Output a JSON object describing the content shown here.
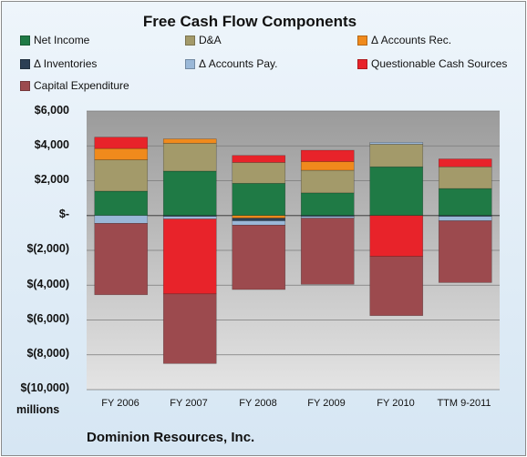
{
  "chart_data": {
    "type": "bar",
    "stacked": true,
    "title": "Free Cash Flow Components",
    "units_label": "millions",
    "company": "Dominion Resources, Inc.",
    "categories": [
      "FY 2006",
      "FY 2007",
      "FY 2008",
      "FY 2009",
      "FY 2010",
      "TTM 9-2011"
    ],
    "ylim": [
      -10000,
      6000
    ],
    "yticks": [
      6000,
      4000,
      2000,
      0,
      -2000,
      -4000,
      -6000,
      -8000,
      -10000
    ],
    "ytick_labels": [
      "$6,000",
      "$4,000",
      "$2,000",
      "$-",
      "$(2,000)",
      "$(4,000)",
      "$(6,000)",
      "$(8,000)",
      "$(10,000)"
    ],
    "grid": true,
    "legend_position": "top",
    "series": [
      {
        "name": "Net Income",
        "color": "#1f7a45",
        "values": [
          1400,
          2550,
          1850,
          1300,
          2800,
          1550
        ]
      },
      {
        "name": "D&A",
        "color": "#a39a6a",
        "values": [
          1800,
          1600,
          1200,
          1300,
          1300,
          1250
        ]
      },
      {
        "name": "Δ Accounts Rec.",
        "color": "#f08a1c",
        "values": [
          650,
          250,
          -150,
          500,
          0,
          0
        ]
      },
      {
        "name": "Δ Inventories",
        "color": "#2b3f55",
        "values": [
          0,
          -50,
          -150,
          -50,
          0,
          -50
        ]
      },
      {
        "name": "Δ Accounts Pay.",
        "color": "#9ab8d8",
        "values": [
          -450,
          -150,
          -250,
          -100,
          100,
          -250
        ]
      },
      {
        "name": "Questionable Cash Sources",
        "color": "#e8232a",
        "values": [
          650,
          -4300,
          400,
          650,
          -2350,
          450
        ]
      },
      {
        "name": "Capital Expenditure",
        "color": "#9c4a4e",
        "values": [
          -4100,
          -4000,
          -3700,
          -3800,
          -3400,
          -3550
        ]
      }
    ]
  }
}
